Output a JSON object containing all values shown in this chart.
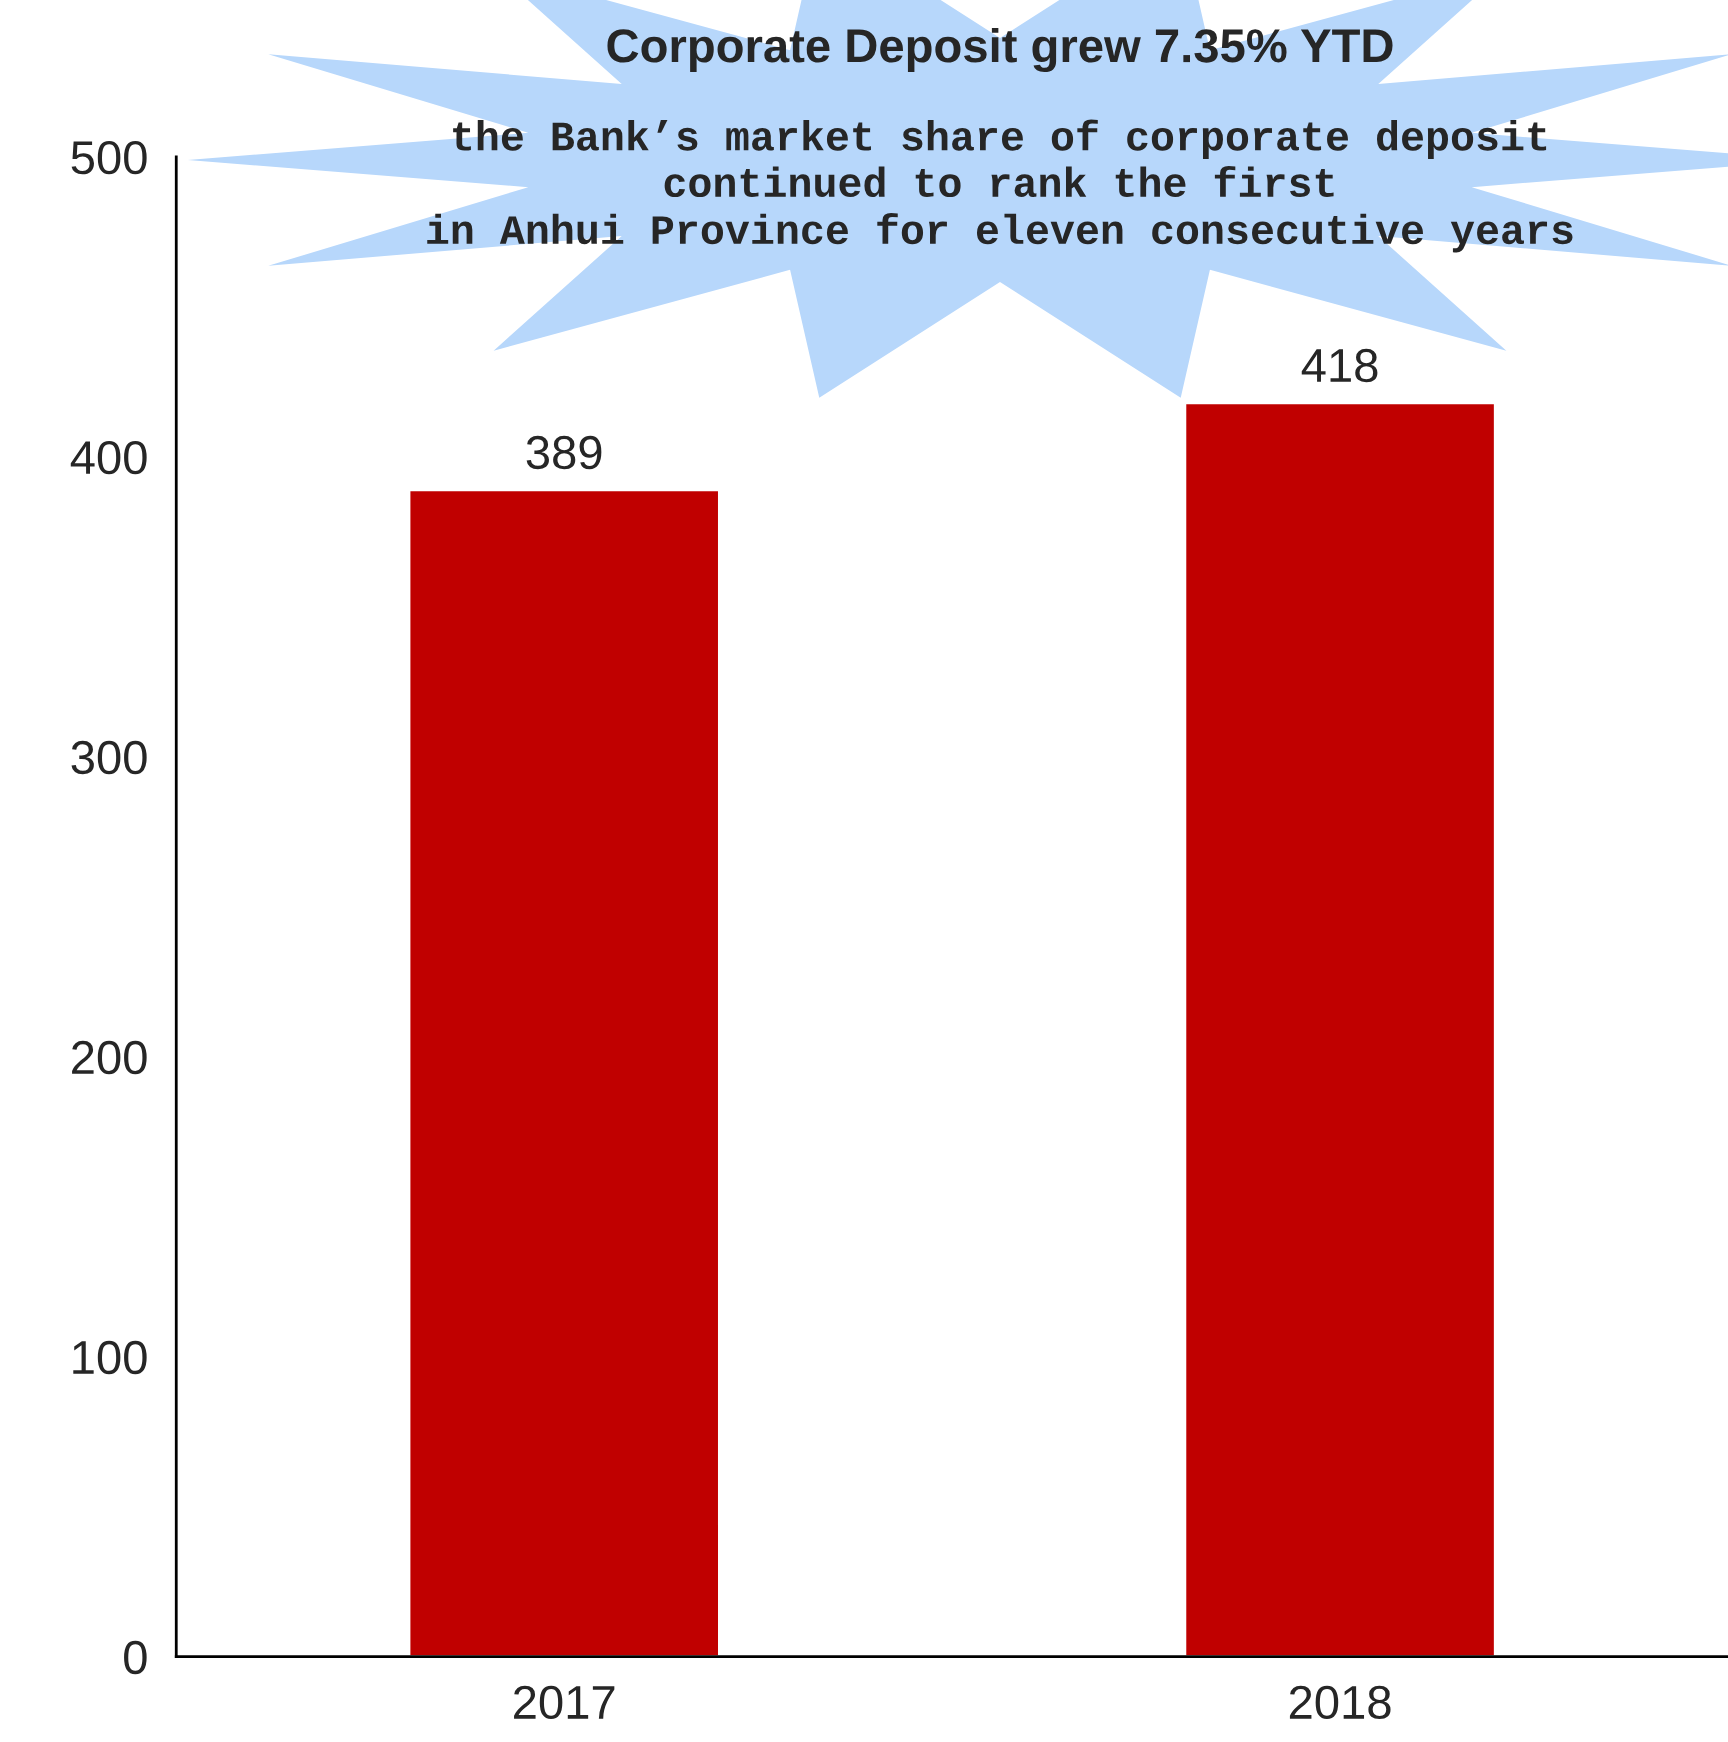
{
  "chart_data": {
    "type": "bar",
    "title": "Corporate Deposit grew 7.35% YTD",
    "subtitle": "the Bank’s market share of corporate deposit\ncontinued to rank the first\nin Anhui Province for eleven consecutive years",
    "categories": [
      "2017",
      "2018"
    ],
    "values": [
      389,
      418
    ],
    "color": "#c00000",
    "ylim": [
      0,
      500
    ],
    "yticks": [
      0,
      100,
      200,
      300,
      400,
      500
    ],
    "data_labels": true,
    "grid": false,
    "legend": false
  }
}
